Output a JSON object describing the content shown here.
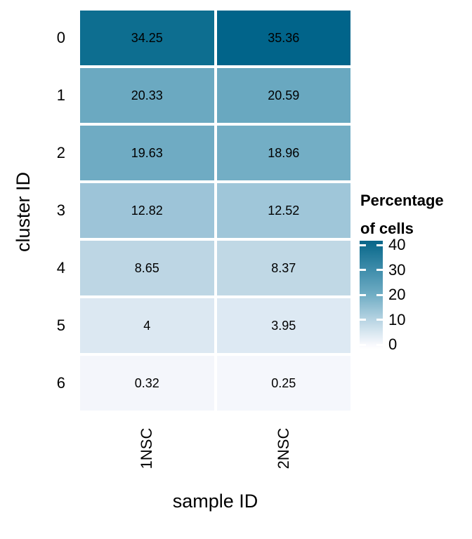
{
  "figure": {
    "background": "#ffffff",
    "text_color": "#000000"
  },
  "chart_data": {
    "type": "heatmap",
    "title": "",
    "xlabel": "sample ID",
    "ylabel": "cluster ID",
    "x_categories": [
      "1NSC",
      "2NSC"
    ],
    "y_categories": [
      "0",
      "1",
      "2",
      "3",
      "4",
      "5",
      "6"
    ],
    "rows": [
      {
        "cluster": "0",
        "labels": [
          "34.25",
          "35.36"
        ],
        "values": [
          34.25,
          35.36
        ],
        "colors": [
          "#0d6e90",
          "#01648a"
        ]
      },
      {
        "cluster": "1",
        "labels": [
          "20.33",
          "20.59"
        ],
        "values": [
          20.33,
          20.59
        ],
        "colors": [
          "#6ba9c1",
          "#69a8c0"
        ]
      },
      {
        "cluster": "2",
        "labels": [
          "19.63",
          "18.96"
        ],
        "values": [
          19.63,
          18.96
        ],
        "colors": [
          "#6fabc3",
          "#73aec5"
        ]
      },
      {
        "cluster": "3",
        "labels": [
          "12.82",
          "12.52"
        ],
        "values": [
          12.82,
          12.52
        ],
        "colors": [
          "#9dc4d8",
          "#9fc6d9"
        ]
      },
      {
        "cluster": "4",
        "labels": [
          "8.65",
          "8.37"
        ],
        "values": [
          8.65,
          8.37
        ],
        "colors": [
          "#bdd6e4",
          "#c0d8e5"
        ]
      },
      {
        "cluster": "5",
        "labels": [
          "4",
          "3.95"
        ],
        "values": [
          4,
          3.95
        ],
        "colors": [
          "#dce8f2",
          "#dde9f3"
        ]
      },
      {
        "cluster": "6",
        "labels": [
          "0.32",
          "0.25"
        ],
        "values": [
          0.32,
          0.25
        ],
        "colors": [
          "#f4f6fb",
          "#f5f7fc"
        ]
      }
    ],
    "value_range": [
      0,
      40
    ],
    "grid_lines": "white gaps between tiles",
    "legend": {
      "position": "right",
      "title_lines": [
        "Percentage",
        "of cells"
      ],
      "ticks": [
        "40",
        "30",
        "20",
        "10",
        "0"
      ],
      "tick_positions_pct": [
        3.9,
        26.8,
        49.7,
        72.6,
        95.5
      ],
      "gradient_stops": [
        {
          "pos": 0,
          "color": "#0a6589"
        },
        {
          "pos": 3.9,
          "color": "#0f6c8e"
        },
        {
          "pos": 26.8,
          "color": "#3f8dab"
        },
        {
          "pos": 49.7,
          "color": "#70adc4"
        },
        {
          "pos": 72.6,
          "color": "#b7d4e3"
        },
        {
          "pos": 95.5,
          "color": "#f8f9fd"
        },
        {
          "pos": 100,
          "color": "#ffffff"
        }
      ]
    }
  }
}
